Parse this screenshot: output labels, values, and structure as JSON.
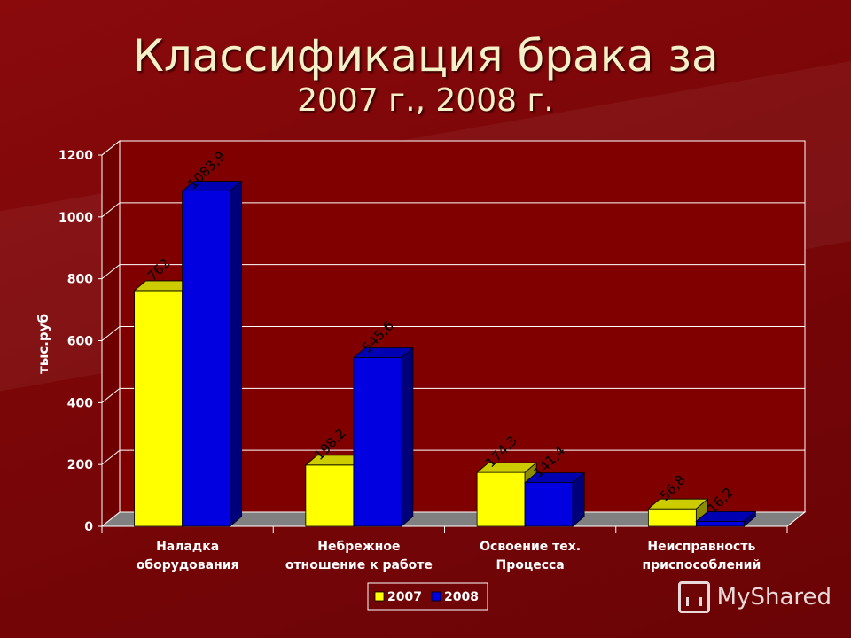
{
  "slide": {
    "title_line1": "Классификация брака за",
    "title_line2": "2007 г., 2008 г.",
    "watermark": "MyShared"
  },
  "chart_data": {
    "type": "bar",
    "categories": [
      [
        "Наладка",
        "оборудования"
      ],
      [
        "Небрежное",
        "отношение к работе"
      ],
      [
        "Освоение тех.",
        "Процесса"
      ],
      [
        "Неисправность",
        "приспособлений"
      ]
    ],
    "series": [
      {
        "name": "2007",
        "values": [
          762,
          198.2,
          174.3,
          56.8
        ],
        "labels": [
          "762",
          "198,2",
          "174,3",
          "56,8"
        ],
        "color": "#ffff00"
      },
      {
        "name": "2008",
        "values": [
          1083.9,
          545.6,
          141.4,
          16.2
        ],
        "labels": [
          "1083,9",
          "545,6",
          "141,4",
          "16,2"
        ],
        "color": "#0000e0"
      }
    ],
    "ylabel": "тыс.руб",
    "ylim": [
      0,
      1200
    ],
    "yticks": [
      "0",
      "200",
      "400",
      "600",
      "800",
      "1000",
      "1200"
    ],
    "grid": true,
    "legend_position": "bottom",
    "plot_background": "#800000",
    "floor_color": "#808080"
  }
}
